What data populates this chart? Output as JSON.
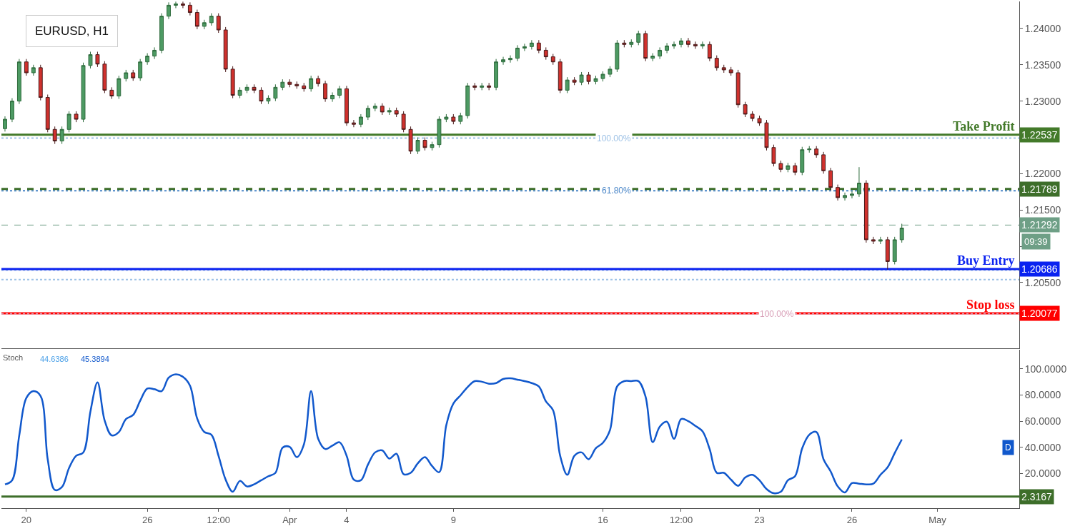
{
  "chart_data": [
    {
      "type": "candlestick",
      "title": "EURUSD, H1",
      "tick_labels": "y",
      "ohlc": [
        [
          1.2262,
          1.2279,
          1.2258,
          1.2275
        ],
        [
          1.2275,
          1.2304,
          1.2271,
          1.23
        ],
        [
          1.23,
          1.2358,
          1.2296,
          1.2354
        ],
        [
          1.2354,
          1.2358,
          1.2335,
          1.2339
        ],
        [
          1.2339,
          1.235,
          1.2335,
          1.2346
        ],
        [
          1.2346,
          1.235,
          1.2301,
          1.2305
        ],
        [
          1.2305,
          1.2309,
          1.2257,
          1.2261
        ],
        [
          1.2261,
          1.2265,
          1.2241,
          1.2245
        ],
        [
          1.2245,
          1.2265,
          1.2241,
          1.2261
        ],
        [
          1.2261,
          1.2286,
          1.2257,
          1.2282
        ],
        [
          1.2282,
          1.2286,
          1.2271,
          1.2275
        ],
        [
          1.2275,
          1.2353,
          1.2271,
          1.2349
        ],
        [
          1.2349,
          1.2368,
          1.2345,
          1.2364
        ],
        [
          1.2364,
          1.2368,
          1.2347,
          1.2351
        ],
        [
          1.2351,
          1.2355,
          1.2311,
          1.2315
        ],
        [
          1.2315,
          1.2319,
          1.2303,
          1.2307
        ],
        [
          1.2307,
          1.2335,
          1.2303,
          1.2331
        ],
        [
          1.2331,
          1.2343,
          1.2327,
          1.2339
        ],
        [
          1.2339,
          1.2343,
          1.2328,
          1.2332
        ],
        [
          1.2332,
          1.2358,
          1.2328,
          1.2354
        ],
        [
          1.2354,
          1.2366,
          1.235,
          1.2362
        ],
        [
          1.2362,
          1.2374,
          1.2358,
          1.237
        ],
        [
          1.237,
          1.2421,
          1.2366,
          1.2417
        ],
        [
          1.2417,
          1.2436,
          1.2413,
          1.2432
        ],
        [
          1.2432,
          1.2437,
          1.2428,
          1.2434
        ],
        [
          1.2434,
          1.2437,
          1.2428,
          1.2432
        ],
        [
          1.2432,
          1.2436,
          1.2418,
          1.2422
        ],
        [
          1.2422,
          1.2426,
          1.2399,
          1.2403
        ],
        [
          1.2403,
          1.2412,
          1.2399,
          1.2408
        ],
        [
          1.2408,
          1.2421,
          1.2404,
          1.2417
        ],
        [
          1.2417,
          1.2421,
          1.2394,
          1.2398
        ],
        [
          1.2398,
          1.2402,
          1.234,
          1.2344
        ],
        [
          1.2344,
          1.2348,
          1.2304,
          1.2308
        ],
        [
          1.2308,
          1.2319,
          1.2304,
          1.2315
        ],
        [
          1.2315,
          1.2323,
          1.2311,
          1.2319
        ],
        [
          1.2319,
          1.2323,
          1.2311,
          1.2315
        ],
        [
          1.2315,
          1.2319,
          1.2296,
          1.23
        ],
        [
          1.23,
          1.2308,
          1.2296,
          1.2304
        ],
        [
          1.2304,
          1.2323,
          1.23,
          1.2319
        ],
        [
          1.2319,
          1.233,
          1.2315,
          1.2326
        ],
        [
          1.2326,
          1.233,
          1.2319,
          1.2323
        ],
        [
          1.2323,
          1.2327,
          1.2317,
          1.2321
        ],
        [
          1.2321,
          1.2325,
          1.2313,
          1.2317
        ],
        [
          1.2317,
          1.2335,
          1.2313,
          1.2331
        ],
        [
          1.2331,
          1.2335,
          1.232,
          1.2324
        ],
        [
          1.2324,
          1.2328,
          1.2299,
          1.2303
        ],
        [
          1.2303,
          1.2312,
          1.2299,
          1.2308
        ],
        [
          1.2308,
          1.2321,
          1.2304,
          1.2317
        ],
        [
          1.2317,
          1.2321,
          1.2266,
          1.227
        ],
        [
          1.227,
          1.2274,
          1.2264,
          1.2268
        ],
        [
          1.2268,
          1.2282,
          1.2264,
          1.2278
        ],
        [
          1.2278,
          1.2294,
          1.2274,
          1.229
        ],
        [
          1.229,
          1.2297,
          1.2286,
          1.2293
        ],
        [
          1.2293,
          1.2297,
          1.2281,
          1.2285
        ],
        [
          1.2285,
          1.2291,
          1.2281,
          1.2287
        ],
        [
          1.2287,
          1.2291,
          1.2278,
          1.2282
        ],
        [
          1.2282,
          1.2286,
          1.2257,
          1.2261
        ],
        [
          1.2261,
          1.2265,
          1.2227,
          1.2231
        ],
        [
          1.2231,
          1.225,
          1.2227,
          1.2246
        ],
        [
          1.2246,
          1.225,
          1.2232,
          1.2236
        ],
        [
          1.2236,
          1.2244,
          1.2232,
          1.224
        ],
        [
          1.224,
          1.2279,
          1.2236,
          1.2275
        ],
        [
          1.2275,
          1.2282,
          1.2271,
          1.2278
        ],
        [
          1.2278,
          1.2282,
          1.2268,
          1.2272
        ],
        [
          1.2272,
          1.2284,
          1.2268,
          1.228
        ],
        [
          1.228,
          1.2325,
          1.2276,
          1.2321
        ],
        [
          1.2321,
          1.2325,
          1.2315,
          1.2319
        ],
        [
          1.2319,
          1.2325,
          1.2315,
          1.2321
        ],
        [
          1.2321,
          1.2325,
          1.2315,
          1.2319
        ],
        [
          1.2319,
          1.2358,
          1.2315,
          1.2354
        ],
        [
          1.2354,
          1.2361,
          1.235,
          1.2357
        ],
        [
          1.2357,
          1.2363,
          1.2353,
          1.2359
        ],
        [
          1.2359,
          1.2377,
          1.2355,
          1.2373
        ],
        [
          1.2373,
          1.2379,
          1.2369,
          1.2375
        ],
        [
          1.2375,
          1.2384,
          1.2371,
          1.238
        ],
        [
          1.238,
          1.2384,
          1.2366,
          1.237
        ],
        [
          1.237,
          1.2374,
          1.2357,
          1.2361
        ],
        [
          1.2361,
          1.2365,
          1.235,
          1.2354
        ],
        [
          1.2354,
          1.2358,
          1.2311,
          1.2315
        ],
        [
          1.2315,
          1.2333,
          1.2311,
          1.2329
        ],
        [
          1.2329,
          1.2333,
          1.2322,
          1.2326
        ],
        [
          1.2326,
          1.234,
          1.2322,
          1.2336
        ],
        [
          1.2336,
          1.234,
          1.2323,
          1.2327
        ],
        [
          1.2327,
          1.2335,
          1.2323,
          1.2331
        ],
        [
          1.2331,
          1.2341,
          1.2327,
          1.2337
        ],
        [
          1.2337,
          1.2348,
          1.2333,
          1.2344
        ],
        [
          1.2344,
          1.2384,
          1.234,
          1.238
        ],
        [
          1.238,
          1.2384,
          1.2374,
          1.2378
        ],
        [
          1.2378,
          1.2385,
          1.2374,
          1.2381
        ],
        [
          1.2381,
          1.2397,
          1.2377,
          1.2393
        ],
        [
          1.2393,
          1.2397,
          1.2355,
          1.2359
        ],
        [
          1.2359,
          1.2366,
          1.2355,
          1.2362
        ],
        [
          1.2362,
          1.2374,
          1.2358,
          1.237
        ],
        [
          1.237,
          1.238,
          1.2366,
          1.2376
        ],
        [
          1.2376,
          1.2382,
          1.2372,
          1.2378
        ],
        [
          1.2378,
          1.2387,
          1.2374,
          1.2383
        ],
        [
          1.2383,
          1.2387,
          1.2374,
          1.2378
        ],
        [
          1.2378,
          1.2382,
          1.2372,
          1.2376
        ],
        [
          1.2376,
          1.2382,
          1.2372,
          1.2378
        ],
        [
          1.2378,
          1.2382,
          1.2355,
          1.2359
        ],
        [
          1.2359,
          1.2363,
          1.2342,
          1.2346
        ],
        [
          1.2346,
          1.235,
          1.2339,
          1.2343
        ],
        [
          1.2343,
          1.2347,
          1.2335,
          1.2339
        ],
        [
          1.2339,
          1.2343,
          1.2291,
          1.2295
        ],
        [
          1.2295,
          1.2299,
          1.2278,
          1.2282
        ],
        [
          1.2282,
          1.2286,
          1.2272,
          1.2276
        ],
        [
          1.2276,
          1.228,
          1.2266,
          1.227
        ],
        [
          1.227,
          1.2274,
          1.2232,
          1.2236
        ],
        [
          1.2236,
          1.224,
          1.221,
          1.2214
        ],
        [
          1.2214,
          1.2218,
          1.2202,
          1.2206
        ],
        [
          1.2206,
          1.2215,
          1.2202,
          1.2211
        ],
        [
          1.2211,
          1.2215,
          1.2198,
          1.2202
        ],
        [
          1.2202,
          1.2237,
          1.2198,
          1.2233
        ],
        [
          1.2233,
          1.2238,
          1.2229,
          1.2234
        ],
        [
          1.2234,
          1.2238,
          1.2222,
          1.2226
        ],
        [
          1.2226,
          1.223,
          1.22,
          1.2204
        ],
        [
          1.2204,
          1.2208,
          1.2177,
          1.2181
        ],
        [
          1.2181,
          1.2185,
          1.2163,
          1.2167
        ],
        [
          1.2167,
          1.2174,
          1.2163,
          1.217
        ],
        [
          1.217,
          1.2176,
          1.2166,
          1.2172
        ],
        [
          1.2172,
          1.2209,
          1.2168,
          1.2187
        ],
        [
          1.2187,
          1.2191,
          1.2105,
          1.2109
        ],
        [
          1.2109,
          1.2113,
          1.2103,
          1.2107
        ],
        [
          1.2107,
          1.2113,
          1.2103,
          1.2109
        ],
        [
          1.2109,
          1.2113,
          1.2068,
          1.2079
        ],
        [
          1.2079,
          1.2113,
          1.2075,
          1.2109
        ],
        [
          1.2109,
          1.2131,
          1.2105,
          1.2125
        ],
        null,
        null,
        null,
        null,
        null,
        null,
        null,
        null,
        null,
        null,
        null,
        null,
        null,
        null,
        null,
        null
      ],
      "ylim": [
        1.19598,
        1.24373
      ],
      "yticks": [
        {
          "value": 1.2,
          "label": null
        },
        {
          "value": 1.205,
          "label": "1.20500"
        },
        {
          "value": 1.21,
          "label": null
        },
        {
          "value": 1.215,
          "label": "1.21500"
        },
        {
          "value": 1.22,
          "label": "1.22000"
        },
        {
          "value": 1.225,
          "label": null
        },
        {
          "value": 1.23,
          "label": "1.23000"
        },
        {
          "value": 1.235,
          "label": "1.23500"
        },
        {
          "value": 1.24,
          "label": "1.24000"
        }
      ],
      "ref_lines": [
        {
          "axis": "y",
          "value": 1.2249,
          "label": null,
          "color": "#9ec2e6",
          "line_style": "dotted"
        },
        {
          "axis": "y",
          "value": 1.22537,
          "label": "1.22537",
          "color": "#437a2a",
          "line_style": "solid"
        },
        {
          "axis": "y",
          "value": 1.21765,
          "label": null,
          "color": "#4a86c8",
          "line_style": "dotted"
        },
        {
          "axis": "y",
          "value": 1.21789,
          "label": "1.21789",
          "color": "#3d6e2a",
          "line_style": "dashed"
        },
        {
          "axis": "y",
          "value": 1.21292,
          "label": "1.21292",
          "color": "#6e9f86",
          "line_style": "dashed"
        },
        {
          "axis": "y",
          "value": 1.2067,
          "label": null,
          "color": "#9ec2e6",
          "line_style": "dotted"
        },
        {
          "axis": "y",
          "value": 1.2054,
          "label": null,
          "color": "#9ec2e6",
          "line_style": "dotted"
        },
        {
          "axis": "y",
          "value": 1.20686,
          "label": "1.20686",
          "color": "#0a22f0",
          "line_style": "solid"
        },
        {
          "axis": "y",
          "value": 1.20077,
          "label": "1.20077",
          "color": "#ff0000",
          "line_style": "solid"
        },
        {
          "axis": "y",
          "value": 1.2007,
          "label": null,
          "color": "#d9a0b8",
          "line_style": "dotted"
        }
      ],
      "annotations": [
        "09:39",
        {
          "text": "Take Profit",
          "y": 1.22537
        },
        {
          "text": "Buy Entry",
          "y": 1.20686
        },
        {
          "text": "Stop loss",
          "y": 1.20077
        },
        {
          "text": "100.00%",
          "y": 1.2249
        },
        {
          "text": "61.80%",
          "y": 1.21765
        },
        {
          "text": "100.00%",
          "y": 1.2007
        }
      ]
    },
    {
      "type": "line",
      "title": "Stoch",
      "categories": [
        null,
        null,
        null,
        "20",
        null,
        null,
        null,
        null,
        null,
        null,
        null,
        null,
        null,
        null,
        null,
        null,
        null,
        null,
        null,
        null,
        "26",
        null,
        null,
        null,
        null,
        null,
        null,
        null,
        null,
        null,
        "12:00",
        null,
        null,
        null,
        null,
        null,
        null,
        null,
        null,
        null,
        "Apr",
        null,
        null,
        null,
        null,
        null,
        null,
        null,
        "4",
        null,
        null,
        null,
        null,
        null,
        null,
        null,
        null,
        null,
        null,
        null,
        null,
        null,
        null,
        "9",
        null,
        null,
        null,
        null,
        null,
        null,
        null,
        null,
        null,
        null,
        null,
        null,
        null,
        null,
        null,
        null,
        null,
        null,
        null,
        null,
        "16",
        null,
        null,
        null,
        null,
        null,
        null,
        null,
        null,
        null,
        null,
        "12:00",
        null,
        null,
        null,
        null,
        null,
        null,
        null,
        null,
        null,
        null,
        "23",
        null,
        null,
        null,
        null,
        null,
        null,
        null,
        null,
        null,
        null,
        null,
        null,
        "26",
        null,
        null,
        null,
        null,
        null,
        null,
        null,
        null,
        null,
        null,
        null,
        "May",
        null,
        null,
        null,
        null,
        null,
        null,
        null,
        null,
        null,
        null,
        null
      ],
      "series": [
        {
          "color": "#1158cc",
          "values": [
            11.7,
            14.8,
            49,
            77.7,
            82.9,
            79.2,
            30.9,
            7.5,
            9.6,
            24.2,
            33.5,
            36.1,
            67.3,
            89.6,
            60.5,
            49.1,
            51.7,
            61.6,
            64.7,
            75.6,
            84.9,
            84.4,
            82.9,
            93.2,
            95.8,
            93.8,
            87,
            62,
            51.7,
            49.6,
            33.5,
            15.3,
            6,
            14.3,
            10.1,
            11.7,
            14.8,
            17.9,
            20.5,
            39.7,
            40.3,
            32.5,
            42.3,
            82.9,
            46.5,
            38.7,
            41.3,
            43.9,
            33.5,
            15.3,
            14.8,
            26.8,
            36.1,
            37.7,
            31.4,
            35.1,
            19.5,
            20.5,
            27.8,
            32.5,
            25.7,
            21,
            56.9,
            73.5,
            79.7,
            86,
            90.6,
            90.1,
            88.6,
            89.1,
            92.2,
            92.7,
            91.7,
            90.6,
            89.1,
            86.5,
            75.1,
            68.3,
            33.5,
            19,
            33.5,
            36.1,
            30.9,
            39.2,
            43.4,
            53.2,
            86.5,
            90.6,
            90.6,
            90.6,
            78.7,
            43.9,
            55.8,
            59.5,
            46.5,
            61.6,
            60,
            56.4,
            52.2,
            38.7,
            20.5,
            20.5,
            15.3,
            10.6,
            16.9,
            19,
            14.8,
            8.1,
            4.9,
            6,
            14.8,
            17.9,
            39.2,
            49.6,
            51.7,
            30.9,
            21.6,
            10.1,
            5.5,
            12.7,
            12.2,
            11.7,
            12.2,
            19,
            24.7,
            35.6,
            46,
            null,
            null,
            null,
            null,
            null,
            null,
            null,
            null,
            null,
            null,
            null,
            null,
            null,
            null,
            null,
            null
          ]
        }
      ],
      "ylim": [
        -6.5,
        114.7
      ],
      "yticks": [
        {
          "value": 20,
          "label": "20.0000"
        },
        {
          "value": 40,
          "label": "40.0000"
        },
        {
          "value": 60,
          "label": "60.0000"
        },
        {
          "value": 80,
          "label": "80.0000"
        },
        {
          "value": 100,
          "label": "100.0000"
        }
      ],
      "ref_lines": [
        {
          "axis": "y",
          "value": 2.3167,
          "label": "2.3167",
          "color": "#3d6e2a",
          "line_style": "solid"
        }
      ],
      "annotations": [
        "44.6386",
        "45.3894",
        "D"
      ]
    }
  ]
}
